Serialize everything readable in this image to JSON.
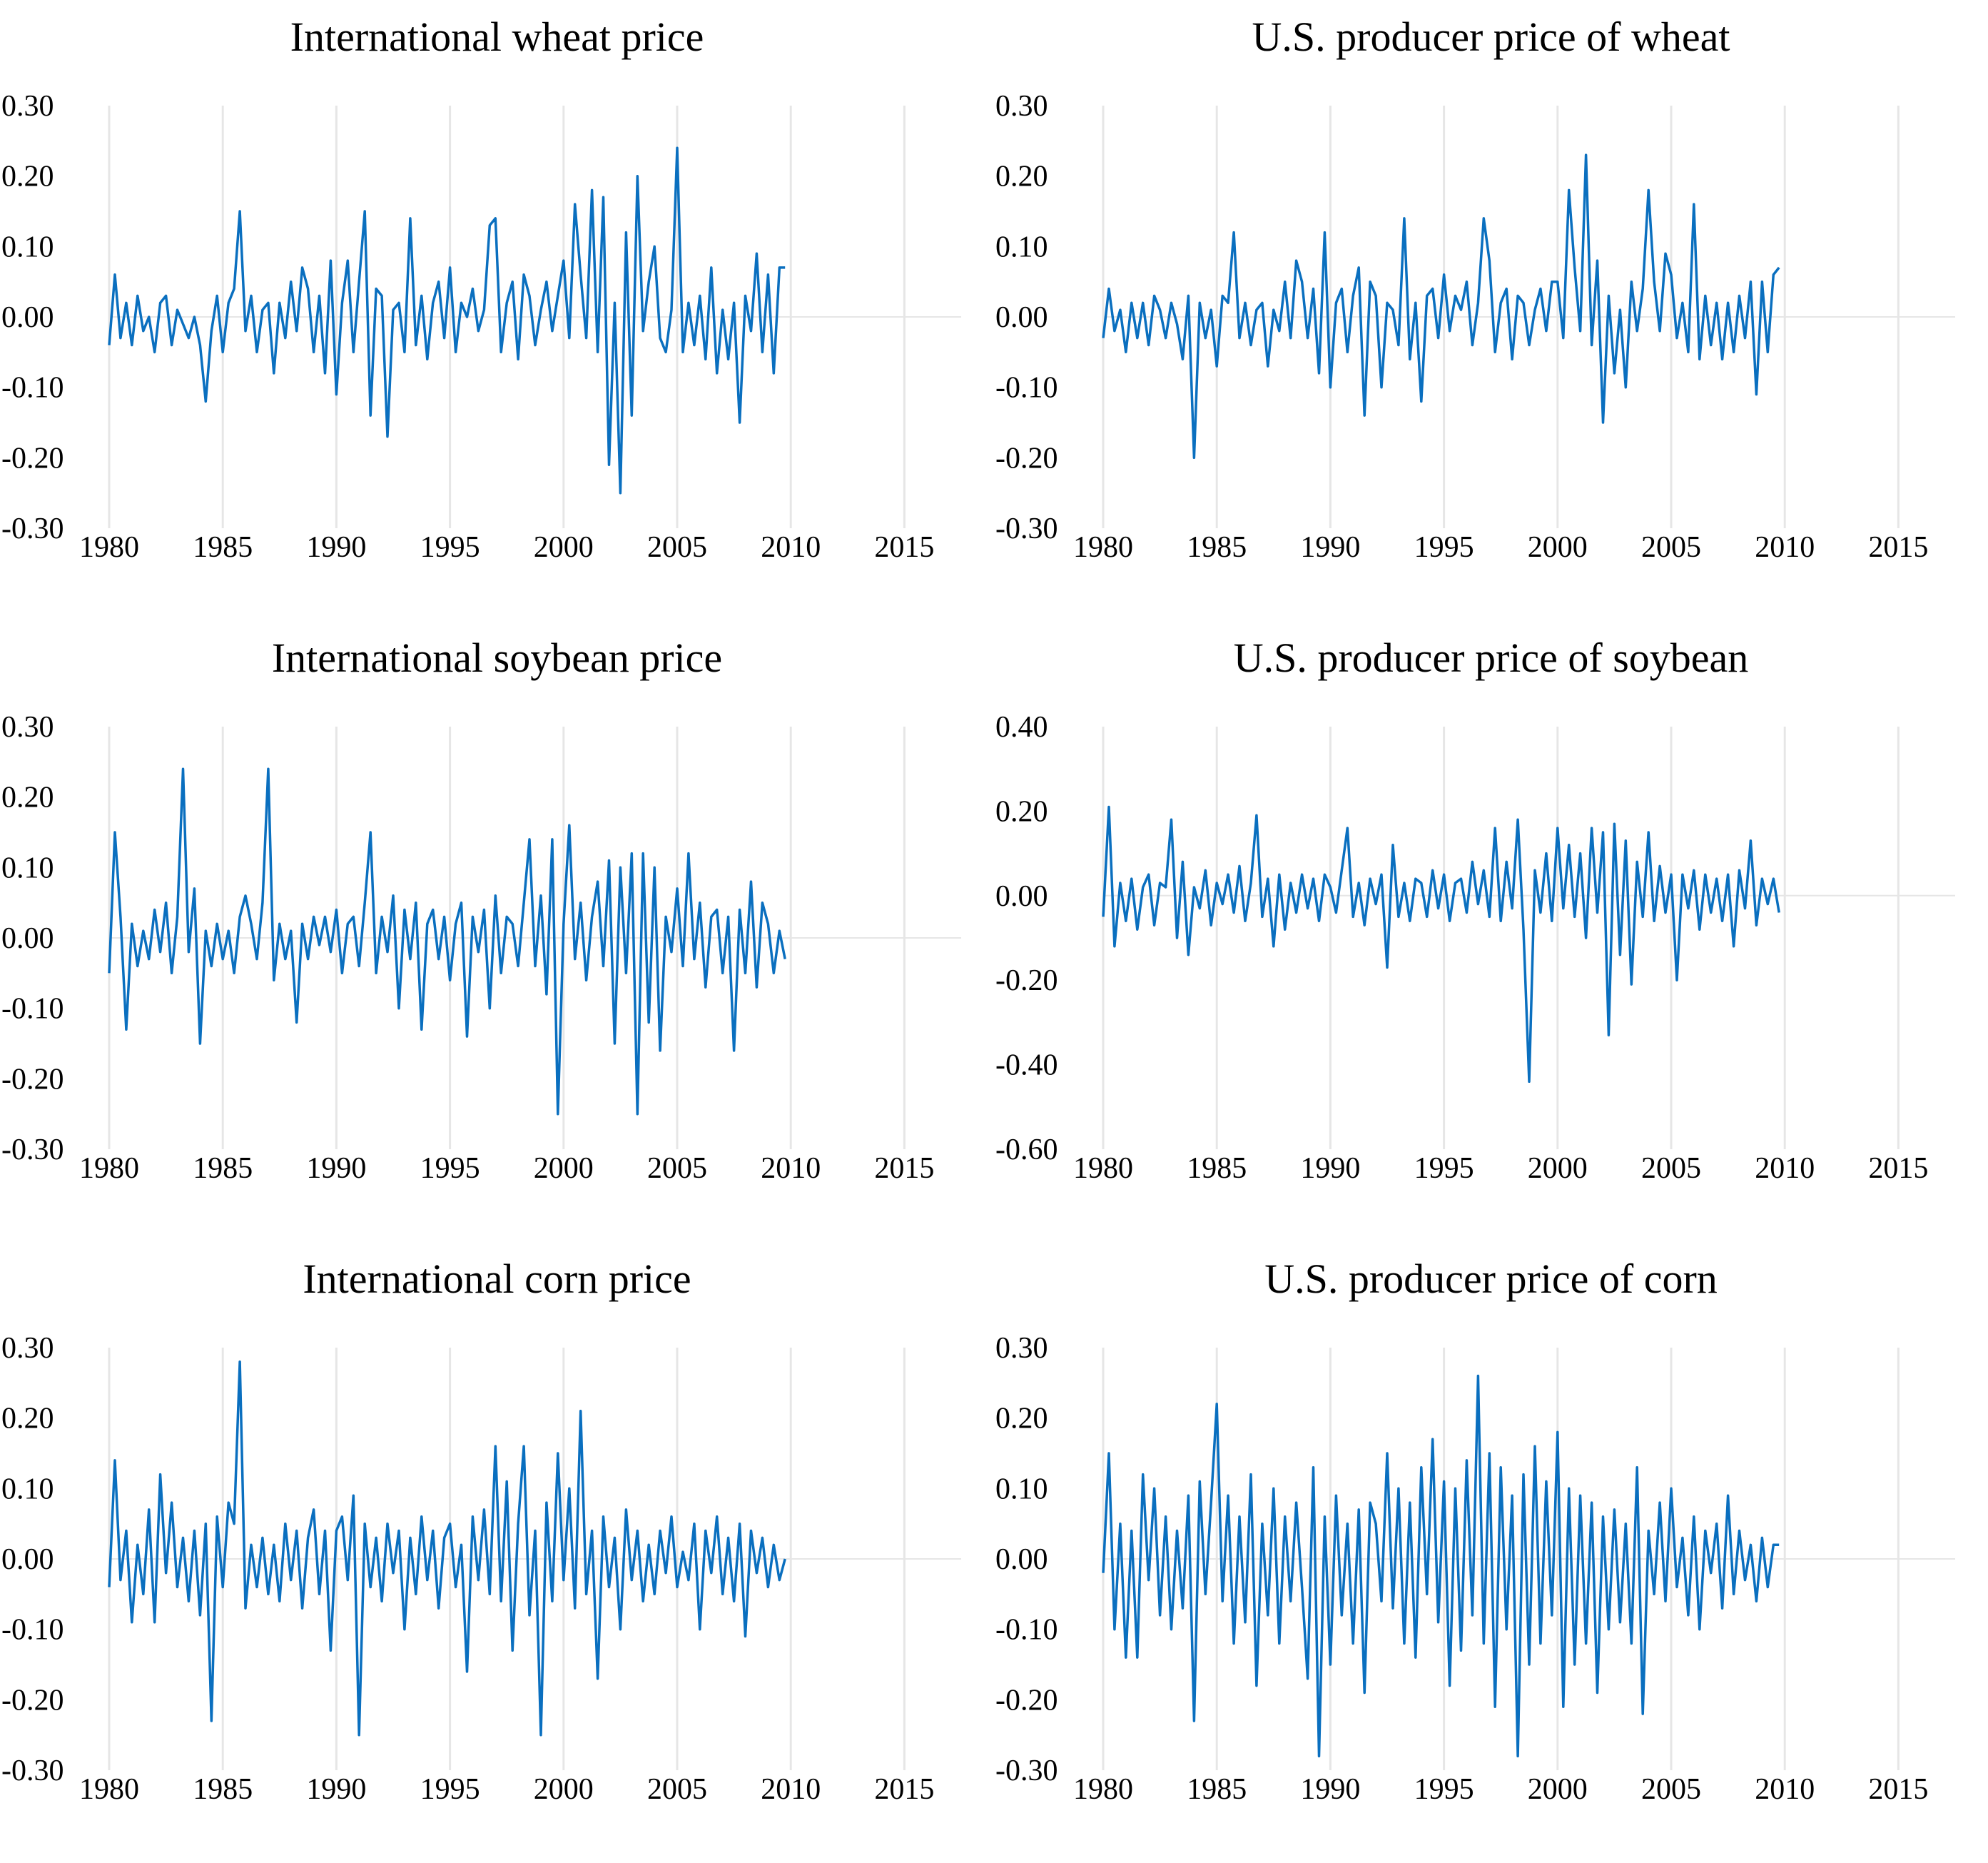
{
  "colors": {
    "series": "#0a6fbf",
    "grid": "#e6e6e6",
    "text": "#000000"
  },
  "chart_data": [
    {
      "type": "line",
      "title": "International wheat price",
      "xlabel": "",
      "ylabel": "",
      "xlim": [
        1980,
        2017.5
      ],
      "ylim": [
        -0.3,
        0.3
      ],
      "xticks": [
        "1980",
        "1985",
        "1990",
        "1995",
        "2000",
        "2005",
        "2010",
        "2015"
      ],
      "yticks": [
        "0.30",
        "0.20",
        "0.10",
        "0.00",
        "-0.10",
        "-0.20",
        "-0.30"
      ],
      "grid": "vertical",
      "series": [
        {
          "name": "International wheat price",
          "x_start": 1980.0,
          "x_step": 0.25,
          "values": [
            -0.04,
            0.06,
            -0.03,
            0.02,
            -0.04,
            0.03,
            -0.02,
            0.0,
            -0.05,
            0.02,
            0.03,
            -0.04,
            0.01,
            -0.01,
            -0.03,
            0.0,
            -0.04,
            -0.12,
            -0.02,
            0.03,
            -0.05,
            0.02,
            0.04,
            0.15,
            -0.02,
            0.03,
            -0.05,
            0.01,
            0.02,
            -0.08,
            0.02,
            -0.03,
            0.05,
            -0.02,
            0.07,
            0.04,
            -0.05,
            0.03,
            -0.08,
            0.08,
            -0.11,
            0.02,
            0.08,
            -0.05,
            0.05,
            0.15,
            -0.14,
            0.04,
            0.03,
            -0.17,
            0.01,
            0.02,
            -0.05,
            0.14,
            -0.04,
            0.03,
            -0.06,
            0.02,
            0.05,
            -0.03,
            0.07,
            -0.05,
            0.02,
            0.0,
            0.04,
            -0.02,
            0.01,
            0.13,
            0.14,
            -0.05,
            0.02,
            0.05,
            -0.06,
            0.06,
            0.03,
            -0.04,
            0.01,
            0.05,
            -0.02,
            0.03,
            0.08,
            -0.03,
            0.16,
            0.06,
            -0.03,
            0.18,
            -0.05,
            0.17,
            -0.21,
            0.02,
            -0.25,
            0.12,
            -0.14,
            0.2,
            -0.02,
            0.05,
            0.1,
            -0.03,
            -0.05,
            0.01,
            0.24,
            -0.05,
            0.02,
            -0.04,
            0.03,
            -0.06,
            0.07,
            -0.08,
            0.01,
            -0.06,
            0.02,
            -0.15,
            0.03,
            -0.02,
            0.09,
            -0.05,
            0.06,
            -0.08,
            0.07,
            0.07
          ]
        }
      ]
    },
    {
      "type": "line",
      "title": "U.S. producer price of wheat",
      "xlabel": "",
      "ylabel": "",
      "xlim": [
        1980,
        2017.5
      ],
      "ylim": [
        -0.3,
        0.3
      ],
      "xticks": [
        "1980",
        "1985",
        "1990",
        "1995",
        "2000",
        "2005",
        "2010",
        "2015"
      ],
      "yticks": [
        "0.30",
        "0.20",
        "0.10",
        "0.00",
        "-0.10",
        "-0.20",
        "-0.30"
      ],
      "grid": "vertical",
      "series": [
        {
          "name": "U.S. producer price of wheat",
          "x_start": 1980.0,
          "x_step": 0.25,
          "values": [
            -0.03,
            0.04,
            -0.02,
            0.01,
            -0.05,
            0.02,
            -0.03,
            0.02,
            -0.04,
            0.03,
            0.01,
            -0.03,
            0.02,
            -0.01,
            -0.06,
            0.03,
            -0.2,
            0.02,
            -0.03,
            0.01,
            -0.07,
            0.03,
            0.02,
            0.12,
            -0.03,
            0.02,
            -0.04,
            0.01,
            0.02,
            -0.07,
            0.01,
            -0.02,
            0.05,
            -0.03,
            0.08,
            0.05,
            -0.03,
            0.04,
            -0.08,
            0.12,
            -0.1,
            0.02,
            0.04,
            -0.05,
            0.03,
            0.07,
            -0.14,
            0.05,
            0.03,
            -0.1,
            0.02,
            0.01,
            -0.04,
            0.14,
            -0.06,
            0.02,
            -0.12,
            0.03,
            0.04,
            -0.03,
            0.06,
            -0.02,
            0.03,
            0.01,
            0.05,
            -0.04,
            0.02,
            0.14,
            0.08,
            -0.05,
            0.02,
            0.04,
            -0.06,
            0.03,
            0.02,
            -0.04,
            0.01,
            0.04,
            -0.02,
            0.05,
            0.05,
            -0.03,
            0.18,
            0.07,
            -0.02,
            0.23,
            -0.04,
            0.08,
            -0.15,
            0.03,
            -0.08,
            0.01,
            -0.1,
            0.05,
            -0.02,
            0.04,
            0.18,
            0.05,
            -0.02,
            0.09,
            0.06,
            -0.03,
            0.02,
            -0.05,
            0.16,
            -0.06,
            0.03,
            -0.04,
            0.02,
            -0.06,
            0.02,
            -0.05,
            0.03,
            -0.03,
            0.05,
            -0.11,
            0.05,
            -0.05,
            0.06,
            0.07
          ]
        }
      ]
    },
    {
      "type": "line",
      "title": "International soybean price",
      "xlabel": "",
      "ylabel": "",
      "xlim": [
        1980,
        2017.5
      ],
      "ylim": [
        -0.3,
        0.3
      ],
      "xticks": [
        "1980",
        "1985",
        "1990",
        "1995",
        "2000",
        "2005",
        "2010",
        "2015"
      ],
      "yticks": [
        "0.30",
        "0.20",
        "0.10",
        "0.00",
        "-0.10",
        "-0.20",
        "-0.30"
      ],
      "grid": "vertical",
      "series": [
        {
          "name": "International soybean price",
          "x_start": 1980.0,
          "x_step": 0.25,
          "values": [
            -0.05,
            0.15,
            0.03,
            -0.13,
            0.02,
            -0.04,
            0.01,
            -0.03,
            0.04,
            -0.02,
            0.05,
            -0.05,
            0.03,
            0.24,
            -0.02,
            0.07,
            -0.15,
            0.01,
            -0.04,
            0.02,
            -0.03,
            0.01,
            -0.05,
            0.03,
            0.06,
            0.02,
            -0.03,
            0.05,
            0.24,
            -0.06,
            0.02,
            -0.03,
            0.01,
            -0.12,
            0.02,
            -0.03,
            0.03,
            -0.01,
            0.03,
            -0.02,
            0.04,
            -0.05,
            0.02,
            0.03,
            -0.04,
            0.05,
            0.15,
            -0.05,
            0.03,
            -0.02,
            0.06,
            -0.1,
            0.04,
            -0.03,
            0.05,
            -0.13,
            0.02,
            0.04,
            -0.03,
            0.03,
            -0.06,
            0.02,
            0.05,
            -0.14,
            0.03,
            -0.02,
            0.04,
            -0.1,
            0.06,
            -0.05,
            0.03,
            0.02,
            -0.04,
            0.05,
            0.14,
            -0.04,
            0.06,
            -0.08,
            0.14,
            -0.25,
            0.02,
            0.16,
            -0.03,
            0.05,
            -0.06,
            0.03,
            0.08,
            -0.04,
            0.11,
            -0.15,
            0.1,
            -0.05,
            0.12,
            -0.25,
            0.12,
            -0.12,
            0.1,
            -0.16,
            0.03,
            -0.02,
            0.07,
            -0.04,
            0.12,
            -0.03,
            0.05,
            -0.07,
            0.03,
            0.04,
            -0.05,
            0.03,
            -0.16,
            0.04,
            -0.05,
            0.08,
            -0.07,
            0.05,
            0.02,
            -0.05,
            0.01,
            -0.03
          ]
        }
      ]
    },
    {
      "type": "line",
      "title": "U.S. producer price of soybean",
      "xlabel": "",
      "ylabel": "",
      "xlim": [
        1980,
        2017.5
      ],
      "ylim": [
        -0.6,
        0.4
      ],
      "xticks": [
        "1980",
        "1985",
        "1990",
        "1995",
        "2000",
        "2005",
        "2010",
        "2015"
      ],
      "yticks": [
        "0.40",
        "0.20",
        "0.00",
        "-0.20",
        "-0.40",
        "-0.60"
      ],
      "grid": "vertical",
      "series": [
        {
          "name": "U.S. producer price of soybean",
          "x_start": 1980.0,
          "x_step": 0.25,
          "values": [
            -0.05,
            0.21,
            -0.12,
            0.03,
            -0.06,
            0.04,
            -0.08,
            0.02,
            0.05,
            -0.07,
            0.03,
            0.02,
            0.18,
            -0.1,
            0.08,
            -0.14,
            0.02,
            -0.03,
            0.06,
            -0.07,
            0.03,
            -0.02,
            0.05,
            -0.04,
            0.07,
            -0.06,
            0.03,
            0.19,
            -0.05,
            0.04,
            -0.12,
            0.05,
            -0.08,
            0.03,
            -0.04,
            0.05,
            -0.03,
            0.04,
            -0.06,
            0.05,
            0.02,
            -0.04,
            0.06,
            0.16,
            -0.05,
            0.03,
            -0.07,
            0.04,
            -0.02,
            0.05,
            -0.17,
            0.12,
            -0.05,
            0.03,
            -0.06,
            0.04,
            0.03,
            -0.05,
            0.06,
            -0.03,
            0.05,
            -0.06,
            0.03,
            0.04,
            -0.04,
            0.08,
            -0.02,
            0.06,
            -0.05,
            0.16,
            -0.06,
            0.08,
            -0.03,
            0.18,
            -0.08,
            -0.44,
            0.06,
            -0.04,
            0.1,
            -0.06,
            0.16,
            -0.03,
            0.12,
            -0.05,
            0.1,
            -0.1,
            0.16,
            -0.04,
            0.15,
            -0.33,
            0.17,
            -0.14,
            0.13,
            -0.21,
            0.08,
            -0.05,
            0.15,
            -0.06,
            0.07,
            -0.04,
            0.05,
            -0.2,
            0.05,
            -0.03,
            0.06,
            -0.08,
            0.05,
            -0.04,
            0.04,
            -0.06,
            0.05,
            -0.12,
            0.06,
            -0.03,
            0.13,
            -0.07,
            0.04,
            -0.02,
            0.04,
            -0.04
          ]
        }
      ]
    },
    {
      "type": "line",
      "title": "International corn price",
      "xlabel": "",
      "ylabel": "",
      "xlim": [
        1980,
        2017.5
      ],
      "ylim": [
        -0.3,
        0.3
      ],
      "xticks": [
        "1980",
        "1985",
        "1990",
        "1995",
        "2000",
        "2005",
        "2010",
        "2015"
      ],
      "yticks": [
        "0.30",
        "0.20",
        "0.10",
        "0.00",
        "-0.10",
        "-0.20",
        "-0.30"
      ],
      "grid": "vertical",
      "series": [
        {
          "name": "International corn price",
          "x_start": 1980.0,
          "x_step": 0.25,
          "values": [
            -0.04,
            0.14,
            -0.03,
            0.04,
            -0.09,
            0.02,
            -0.05,
            0.07,
            -0.09,
            0.12,
            -0.02,
            0.08,
            -0.04,
            0.03,
            -0.06,
            0.04,
            -0.08,
            0.05,
            -0.23,
            0.06,
            -0.04,
            0.08,
            0.05,
            0.28,
            -0.07,
            0.02,
            -0.04,
            0.03,
            -0.05,
            0.02,
            -0.06,
            0.05,
            -0.03,
            0.04,
            -0.07,
            0.03,
            0.07,
            -0.05,
            0.04,
            -0.13,
            0.04,
            0.06,
            -0.03,
            0.09,
            -0.25,
            0.05,
            -0.04,
            0.03,
            -0.06,
            0.05,
            -0.02,
            0.04,
            -0.1,
            0.03,
            -0.05,
            0.06,
            -0.03,
            0.04,
            -0.07,
            0.03,
            0.05,
            -0.04,
            0.02,
            -0.16,
            0.06,
            -0.03,
            0.07,
            -0.05,
            0.16,
            -0.06,
            0.11,
            -0.13,
            0.05,
            0.16,
            -0.08,
            0.04,
            -0.25,
            0.08,
            -0.06,
            0.15,
            -0.03,
            0.1,
            -0.07,
            0.21,
            -0.05,
            0.04,
            -0.17,
            0.06,
            -0.04,
            0.03,
            -0.1,
            0.07,
            -0.03,
            0.04,
            -0.06,
            0.02,
            -0.05,
            0.04,
            -0.02,
            0.06,
            -0.04,
            0.01,
            -0.03,
            0.05,
            -0.1,
            0.04,
            -0.02,
            0.06,
            -0.05,
            0.03,
            -0.06,
            0.05,
            -0.11,
            0.04,
            -0.02,
            0.03,
            -0.04,
            0.02,
            -0.03,
            0.0
          ]
        }
      ]
    },
    {
      "type": "line",
      "title": "U.S. producer price of corn",
      "xlabel": "",
      "ylabel": "",
      "xlim": [
        1980,
        2017.5
      ],
      "ylim": [
        -0.3,
        0.3
      ],
      "xticks": [
        "1980",
        "1985",
        "1990",
        "1995",
        "2000",
        "2005",
        "2010",
        "2015"
      ],
      "yticks": [
        "0.30",
        "0.20",
        "0.10",
        "0.00",
        "-0.10",
        "-0.20",
        "-0.30"
      ],
      "grid": "vertical",
      "series": [
        {
          "name": "U.S. producer price of corn",
          "x_start": 1980.0,
          "x_step": 0.25,
          "values": [
            -0.02,
            0.15,
            -0.1,
            0.05,
            -0.14,
            0.04,
            -0.14,
            0.12,
            -0.03,
            0.1,
            -0.08,
            0.06,
            -0.1,
            0.04,
            -0.07,
            0.09,
            -0.23,
            0.11,
            -0.05,
            0.08,
            0.22,
            -0.06,
            0.09,
            -0.12,
            0.06,
            -0.09,
            0.12,
            -0.18,
            0.05,
            -0.08,
            0.1,
            -0.12,
            0.06,
            -0.06,
            0.08,
            -0.04,
            -0.17,
            0.13,
            -0.28,
            0.06,
            -0.15,
            0.09,
            -0.08,
            0.05,
            -0.12,
            0.07,
            -0.19,
            0.08,
            0.05,
            -0.06,
            0.15,
            -0.07,
            0.1,
            -0.12,
            0.08,
            -0.14,
            0.13,
            -0.05,
            0.17,
            -0.09,
            0.11,
            -0.18,
            0.1,
            -0.13,
            0.14,
            -0.08,
            0.26,
            -0.12,
            0.15,
            -0.21,
            0.13,
            -0.1,
            0.09,
            -0.28,
            0.12,
            -0.15,
            0.16,
            -0.12,
            0.11,
            -0.08,
            0.18,
            -0.21,
            0.1,
            -0.15,
            0.09,
            -0.12,
            0.08,
            -0.19,
            0.06,
            -0.1,
            0.07,
            -0.09,
            0.05,
            -0.12,
            0.13,
            -0.22,
            0.04,
            -0.05,
            0.08,
            -0.06,
            0.1,
            -0.04,
            0.03,
            -0.08,
            0.06,
            -0.1,
            0.04,
            -0.02,
            0.05,
            -0.07,
            0.09,
            -0.05,
            0.04,
            -0.03,
            0.02,
            -0.06,
            0.03,
            -0.04,
            0.02,
            0.02
          ]
        }
      ]
    }
  ]
}
